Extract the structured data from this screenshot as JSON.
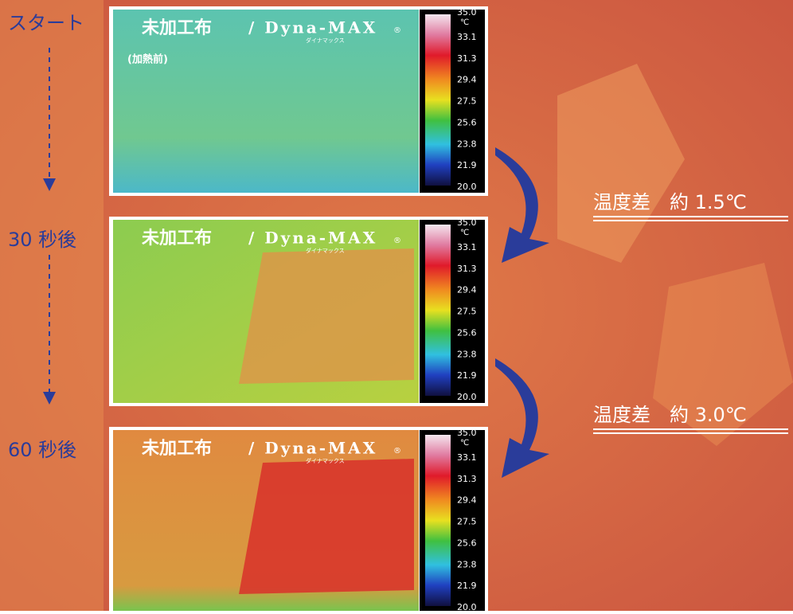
{
  "steps": [
    "スタート",
    "30 秒後",
    "60 秒後"
  ],
  "panels": [
    {
      "left_label": "未加工布",
      "brand": "/ Dyna-MAX",
      "mark": "®",
      "reading": "ダイナマックス",
      "note": "(加熱前)"
    },
    {
      "left_label": "未加工布",
      "brand": "/ Dyna-MAX",
      "mark": "®",
      "reading": "ダイナマックス"
    },
    {
      "left_label": "未加工布",
      "brand": "/ Dyna-MAX",
      "mark": "®",
      "reading": "ダイナマックス"
    }
  ],
  "scale": {
    "unit": "℃",
    "ticks": [
      "35.0",
      "33.1",
      "31.3",
      "29.4",
      "27.5",
      "25.6",
      "23.8",
      "21.9",
      "20.0"
    ]
  },
  "differences": [
    "温度差　約 1.5℃",
    "温度差　約 3.0℃"
  ]
}
